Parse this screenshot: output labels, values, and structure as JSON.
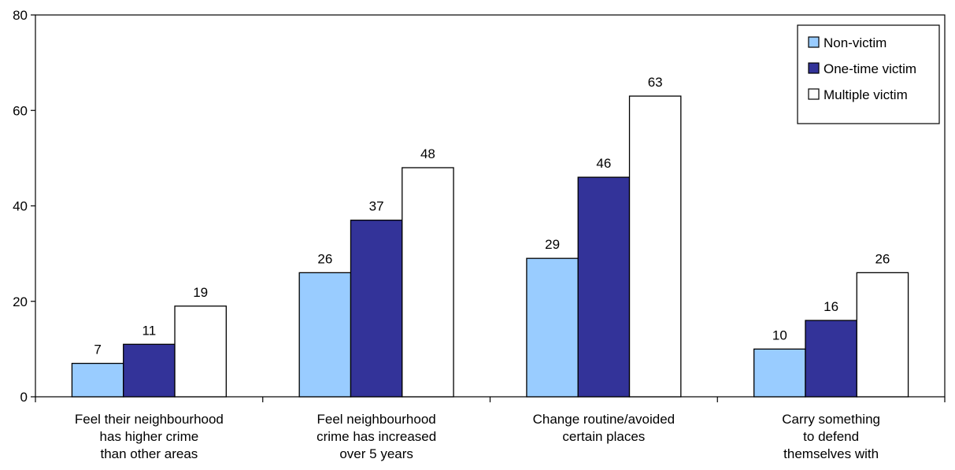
{
  "chart_data": {
    "type": "bar",
    "title": "",
    "xlabel": "",
    "ylabel": "",
    "ylim": [
      0,
      80
    ],
    "yticks": [
      0,
      20,
      40,
      60,
      80
    ],
    "grid": false,
    "legend_position": "top-right",
    "categories": [
      [
        "Feel their neighbourhood",
        "has higher crime",
        "than other areas"
      ],
      [
        "Feel neighbourhood",
        "crime has increased",
        "over 5 years"
      ],
      [
        "Change routine/avoided",
        "certain places"
      ],
      [
        "Carry something",
        "to defend",
        "themselves with"
      ]
    ],
    "series": [
      {
        "name": "Non-victim",
        "color": "#99ccff",
        "values": [
          7,
          26,
          29,
          10
        ]
      },
      {
        "name": "One-time victim",
        "color": "#333399",
        "values": [
          11,
          37,
          46,
          16
        ]
      },
      {
        "name": "Multiple victim",
        "color": "#ffffff",
        "values": [
          19,
          48,
          63,
          26
        ]
      }
    ]
  }
}
